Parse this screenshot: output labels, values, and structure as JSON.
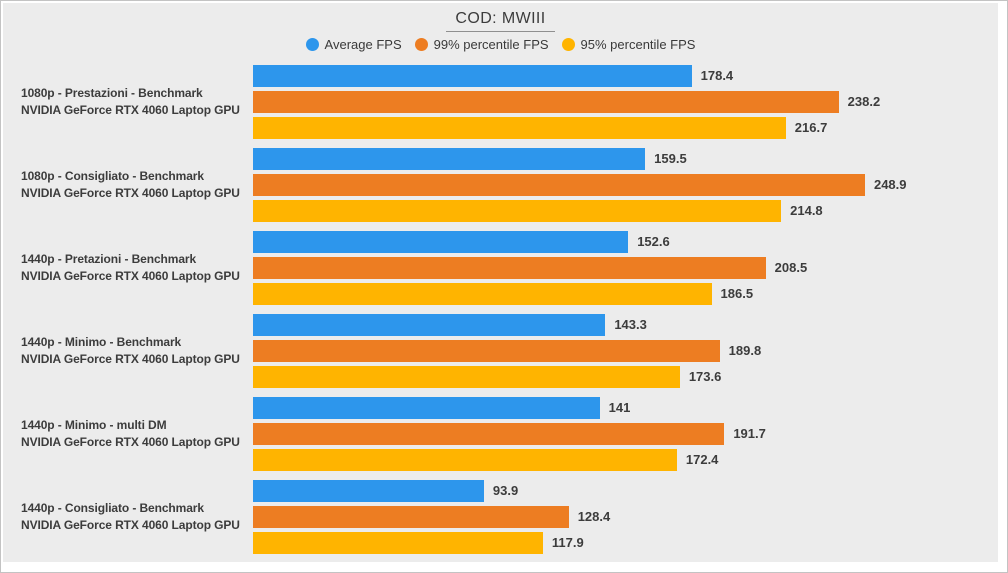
{
  "title": "COD: MWIII",
  "colors": {
    "background": "#ececec",
    "text": "#3c3c3c",
    "blue": "#2d96ec",
    "orange": "#ed7d22",
    "yellow": "#ffb400"
  },
  "legend": [
    {
      "label": "Average FPS",
      "color": "#2d96ec"
    },
    {
      "label": "99% percentile FPS",
      "color": "#ed7d22"
    },
    {
      "label": "95% percentile FPS",
      "color": "#ffb400"
    }
  ],
  "chart_data": {
    "type": "bar",
    "orientation": "horizontal",
    "title": "COD: MWIII",
    "xlabel": "",
    "ylabel": "",
    "xlim": [
      0,
      303
    ],
    "grid": false,
    "legend_position": "top",
    "value_labels_shown": true,
    "categories": [
      [
        "1080p - Prestazioni - Benchmark",
        "NVIDIA GeForce RTX 4060 Laptop GPU"
      ],
      [
        "1080p - Consigliato - Benchmark",
        "NVIDIA GeForce RTX 4060 Laptop GPU"
      ],
      [
        "1440p - Pretazioni - Benchmark",
        "NVIDIA GeForce RTX 4060 Laptop GPU"
      ],
      [
        "1440p - Minimo - Benchmark",
        "NVIDIA GeForce RTX 4060 Laptop GPU"
      ],
      [
        "1440p - Minimo - multi DM",
        "NVIDIA GeForce RTX 4060 Laptop GPU"
      ],
      [
        "1440p - Consigliato - Benchmark",
        "NVIDIA GeForce RTX 4060 Laptop GPU"
      ]
    ],
    "series": [
      {
        "name": "Average FPS",
        "color": "#2d96ec",
        "values": [
          178.4,
          159.5,
          152.6,
          143.3,
          141,
          93.9
        ]
      },
      {
        "name": "99% percentile FPS",
        "color": "#ed7d22",
        "values": [
          238.2,
          248.9,
          208.5,
          189.8,
          191.7,
          128.4
        ]
      },
      {
        "name": "95% percentile FPS",
        "color": "#ffb400",
        "values": [
          216.7,
          214.8,
          186.5,
          173.6,
          172.4,
          117.9
        ]
      }
    ]
  }
}
